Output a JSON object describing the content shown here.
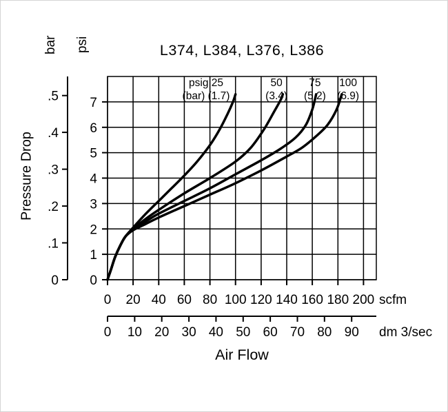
{
  "chart_data": {
    "type": "line",
    "title": "L374, L384, L376, L386",
    "xlabel": "Air Flow",
    "ylabel": "Pressure Drop",
    "grid": true,
    "background": "#ffffff",
    "line_color": "#000000",
    "xlim_scfm": [
      0,
      210
    ],
    "ylim_psi": [
      0,
      8
    ],
    "x_axes": [
      {
        "unit": "scfm",
        "ticks": [
          0,
          20,
          40,
          60,
          80,
          100,
          120,
          140,
          160,
          180,
          200
        ]
      },
      {
        "unit": "dm 3/sec",
        "ticks": [
          0,
          10,
          20,
          30,
          40,
          50,
          60,
          70,
          80,
          90
        ],
        "scfm_per_unit": 2.119
      }
    ],
    "y_axes": [
      {
        "unit": "psi",
        "ticks": [
          0,
          1,
          2,
          3,
          4,
          5,
          6,
          7
        ]
      },
      {
        "unit": "bar",
        "ticks": [
          0,
          0.1,
          0.2,
          0.3,
          0.4,
          0.5
        ],
        "tick_labels": [
          "0",
          ".1",
          ".2",
          ".3",
          ".4",
          ".5"
        ],
        "psi_per_unit": 14.5
      }
    ],
    "series": [
      {
        "name": "psig 25 (bar 1.7)",
        "label_lines": [
          "psig 25",
          "(bar) (1.7)"
        ],
        "label_x_scfm": 77,
        "points_scfm_psi": [
          [
            0,
            0
          ],
          [
            3,
            0.45
          ],
          [
            6,
            0.9
          ],
          [
            10,
            1.35
          ],
          [
            14,
            1.7
          ],
          [
            20,
            2.05
          ],
          [
            30,
            2.6
          ],
          [
            40,
            3.1
          ],
          [
            50,
            3.6
          ],
          [
            60,
            4.1
          ],
          [
            70,
            4.65
          ],
          [
            80,
            5.3
          ],
          [
            88,
            5.95
          ],
          [
            94,
            6.55
          ],
          [
            98,
            7.0
          ],
          [
            100,
            7.3
          ]
        ]
      },
      {
        "name": "psig 50 (bar 3.4)",
        "label_lines": [
          "50",
          "(3.4)"
        ],
        "label_x_scfm": 132,
        "points_scfm_psi": [
          [
            0,
            0
          ],
          [
            3,
            0.45
          ],
          [
            6,
            0.9
          ],
          [
            10,
            1.35
          ],
          [
            14,
            1.7
          ],
          [
            20,
            2.0
          ],
          [
            30,
            2.4
          ],
          [
            40,
            2.75
          ],
          [
            60,
            3.4
          ],
          [
            80,
            4.0
          ],
          [
            100,
            4.65
          ],
          [
            112,
            5.2
          ],
          [
            122,
            5.9
          ],
          [
            130,
            6.6
          ],
          [
            135,
            7.05
          ],
          [
            137,
            7.3
          ]
        ]
      },
      {
        "name": "psig 75 (bar 5.2)",
        "label_lines": [
          "75",
          "(5.2)"
        ],
        "label_x_scfm": 162,
        "points_scfm_psi": [
          [
            0,
            0
          ],
          [
            3,
            0.45
          ],
          [
            6,
            0.9
          ],
          [
            10,
            1.35
          ],
          [
            14,
            1.7
          ],
          [
            20,
            2.0
          ],
          [
            30,
            2.3
          ],
          [
            40,
            2.6
          ],
          [
            60,
            3.1
          ],
          [
            80,
            3.6
          ],
          [
            100,
            4.15
          ],
          [
            120,
            4.7
          ],
          [
            135,
            5.15
          ],
          [
            147,
            5.6
          ],
          [
            155,
            6.1
          ],
          [
            160,
            6.7
          ],
          [
            163,
            7.3
          ]
        ]
      },
      {
        "name": "psig 100 (bar 6.9)",
        "label_lines": [
          "100",
          "(6.9)"
        ],
        "label_x_scfm": 188,
        "points_scfm_psi": [
          [
            0,
            0
          ],
          [
            3,
            0.45
          ],
          [
            6,
            0.9
          ],
          [
            10,
            1.35
          ],
          [
            14,
            1.7
          ],
          [
            20,
            1.95
          ],
          [
            30,
            2.2
          ],
          [
            40,
            2.45
          ],
          [
            60,
            2.9
          ],
          [
            80,
            3.35
          ],
          [
            100,
            3.8
          ],
          [
            120,
            4.3
          ],
          [
            140,
            4.85
          ],
          [
            152,
            5.2
          ],
          [
            163,
            5.65
          ],
          [
            172,
            6.1
          ],
          [
            179,
            6.7
          ],
          [
            183,
            7.3
          ]
        ]
      }
    ]
  }
}
